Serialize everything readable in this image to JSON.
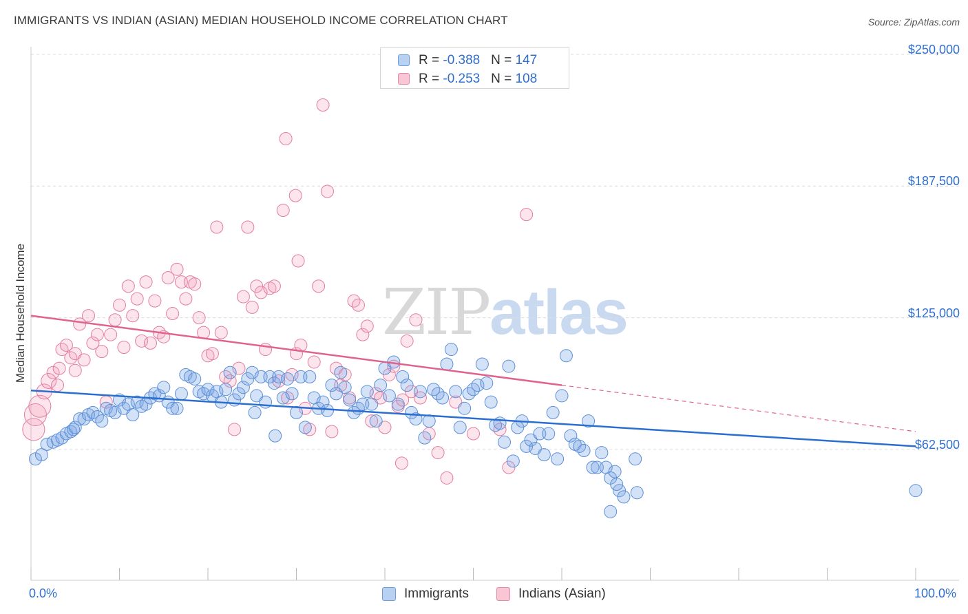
{
  "title": "IMMIGRANTS VS INDIAN (ASIAN) MEDIAN HOUSEHOLD INCOME CORRELATION CHART",
  "source": "Source: ZipAtlas.com",
  "watermark": {
    "zip": "ZIP",
    "atlas": "atlas"
  },
  "legend_top": [
    {
      "r_label": "R = ",
      "r_value": "-0.388",
      "n_label": "N = ",
      "n_value": "147",
      "fill": "#b8d1f3",
      "stroke": "#6c9fe0"
    },
    {
      "r_label": "R = ",
      "r_value": "-0.253",
      "n_label": "N = ",
      "n_value": "108",
      "fill": "#f8c6d4",
      "stroke": "#e888a6"
    }
  ],
  "legend_bottom": [
    {
      "label": "Immigrants",
      "fill": "#b8d1f3",
      "stroke": "#6c9fe0"
    },
    {
      "label": "Indians (Asian)",
      "fill": "#f8c6d4",
      "stroke": "#e888a6"
    }
  ],
  "colors": {
    "immigrants_fill": "rgba(120,165,230,0.32)",
    "immigrants_stroke": "#5b8fd6",
    "immigrants_line": "#2a6fd0",
    "indians_fill": "rgba(244,160,185,0.28)",
    "indians_stroke": "#e27c9e",
    "indians_line": "#e0638f",
    "grid": "#dcdcdc",
    "axis_text": "#2f6fcf"
  },
  "chart_data": {
    "type": "scatter",
    "title": "IMMIGRANTS VS INDIAN (ASIAN) MEDIAN HOUSEHOLD INCOME CORRELATION CHART",
    "xlabel": "",
    "ylabel": "Median Household Income",
    "xlim": [
      0,
      100
    ],
    "ylim": [
      12000,
      265000
    ],
    "x_tick_labels": [
      "0.0%",
      "100.0%"
    ],
    "y_ticks": [
      62500,
      125000,
      187500,
      250000
    ],
    "y_tick_labels": [
      "$62,500",
      "$125,000",
      "$187,500",
      "$250,000"
    ],
    "grid": "horizontal dashed",
    "legend": "top-center",
    "series": [
      {
        "name": "Immigrants",
        "R": -0.388,
        "N": 147,
        "trend": {
          "x": [
            0,
            100
          ],
          "y": [
            90500,
            64000
          ]
        },
        "points": [
          [
            0.5,
            58000
          ],
          [
            1.2,
            60000
          ],
          [
            1.8,
            65000
          ],
          [
            2.5,
            66000
          ],
          [
            3,
            67000
          ],
          [
            3.5,
            68000
          ],
          [
            4,
            70000
          ],
          [
            4.5,
            71000
          ],
          [
            4.8,
            72000
          ],
          [
            5,
            73000
          ],
          [
            5.5,
            77000
          ],
          [
            6,
            77000
          ],
          [
            6.5,
            79000
          ],
          [
            7,
            80000
          ],
          [
            7.5,
            78000
          ],
          [
            8,
            76000
          ],
          [
            8.5,
            82000
          ],
          [
            9,
            81000
          ],
          [
            9.5,
            80000
          ],
          [
            10,
            86000
          ],
          [
            10.5,
            82000
          ],
          [
            11,
            84000
          ],
          [
            11.5,
            79000
          ],
          [
            12,
            85000
          ],
          [
            12.5,
            83000
          ],
          [
            13,
            84000
          ],
          [
            13.5,
            87000
          ],
          [
            14,
            89000
          ],
          [
            14.5,
            88000
          ],
          [
            15,
            92000
          ],
          [
            15.5,
            85000
          ],
          [
            16,
            82000
          ],
          [
            16.5,
            82000
          ],
          [
            17,
            89000
          ],
          [
            17.5,
            98000
          ],
          [
            18,
            97000
          ],
          [
            18.5,
            96000
          ],
          [
            19,
            90000
          ],
          [
            19.5,
            89000
          ],
          [
            20,
            91000
          ],
          [
            20.5,
            88000
          ],
          [
            21,
            90000
          ],
          [
            21.5,
            85000
          ],
          [
            22,
            91000
          ],
          [
            22.5,
            99000
          ],
          [
            23,
            86000
          ],
          [
            23.5,
            89000
          ],
          [
            24,
            92000
          ],
          [
            24.5,
            96000
          ],
          [
            25,
            99000
          ],
          [
            25.5,
            88000
          ],
          [
            26,
            97000
          ],
          [
            26.5,
            85000
          ],
          [
            27,
            97000
          ],
          [
            27.5,
            94000
          ],
          [
            28,
            97000
          ],
          [
            28.5,
            87000
          ],
          [
            29,
            96000
          ],
          [
            29.5,
            89000
          ],
          [
            30,
            80000
          ],
          [
            30.5,
            97000
          ],
          [
            31,
            73000
          ],
          [
            31.5,
            97000
          ],
          [
            32,
            87000
          ],
          [
            32.5,
            82000
          ],
          [
            33,
            85000
          ],
          [
            33.5,
            81000
          ],
          [
            34,
            93000
          ],
          [
            34.5,
            89000
          ],
          [
            35,
            99000
          ],
          [
            35.5,
            92000
          ],
          [
            36,
            86000
          ],
          [
            36.5,
            80000
          ],
          [
            37,
            82000
          ],
          [
            37.5,
            84000
          ],
          [
            38,
            90000
          ],
          [
            38.5,
            84000
          ],
          [
            39,
            76000
          ],
          [
            39.5,
            93000
          ],
          [
            40,
            101000
          ],
          [
            40.5,
            88000
          ],
          [
            41,
            104000
          ],
          [
            41.5,
            84000
          ],
          [
            42,
            97000
          ],
          [
            42.5,
            93000
          ],
          [
            43,
            80000
          ],
          [
            43.5,
            77000
          ],
          [
            44,
            90000
          ],
          [
            44.5,
            68000
          ],
          [
            45,
            76000
          ],
          [
            45.5,
            91000
          ],
          [
            46,
            89000
          ],
          [
            46.5,
            87000
          ],
          [
            47,
            103000
          ],
          [
            47.5,
            110000
          ],
          [
            48,
            90000
          ],
          [
            48.5,
            73000
          ],
          [
            49,
            82000
          ],
          [
            49.5,
            89000
          ],
          [
            50,
            91000
          ],
          [
            50.5,
            93000
          ],
          [
            51,
            103000
          ],
          [
            51.5,
            94000
          ],
          [
            52,
            85000
          ],
          [
            52.5,
            74000
          ],
          [
            53,
            75000
          ],
          [
            53.5,
            66000
          ],
          [
            54,
            102000
          ],
          [
            54.5,
            57000
          ],
          [
            55,
            73000
          ],
          [
            55.5,
            76000
          ],
          [
            56,
            64000
          ],
          [
            56.5,
            67000
          ],
          [
            57,
            63000
          ],
          [
            57.5,
            70000
          ],
          [
            58,
            60000
          ],
          [
            58.5,
            70000
          ],
          [
            59,
            80000
          ],
          [
            59.5,
            58000
          ],
          [
            60,
            88000
          ],
          [
            60.5,
            107000
          ],
          [
            61,
            69000
          ],
          [
            61.5,
            65000
          ],
          [
            62,
            64000
          ],
          [
            62.5,
            62000
          ],
          [
            63,
            76000
          ],
          [
            63.5,
            54000
          ],
          [
            64,
            54000
          ],
          [
            64.5,
            61000
          ],
          [
            65,
            54000
          ],
          [
            65.5,
            49000
          ],
          [
            66,
            52000
          ],
          [
            66.5,
            43000
          ],
          [
            67,
            40000
          ],
          [
            68.5,
            42000
          ],
          [
            65.5,
            33000
          ],
          [
            100,
            43000
          ],
          [
            66.2,
            46000
          ],
          [
            68.3,
            58000
          ],
          [
            25.3,
            80000
          ],
          [
            27.6,
            69000
          ]
        ]
      },
      {
        "name": "Indians (Asian)",
        "R": -0.253,
        "N": 108,
        "trend": {
          "x": [
            0,
            60
          ],
          "y": [
            126000,
            93000
          ]
        },
        "trend_dashed": {
          "x": [
            60,
            100
          ],
          "y": [
            93000,
            71000
          ]
        },
        "points": [
          [
            0.3,
            72000
          ],
          [
            0.5,
            79000
          ],
          [
            1,
            83000
          ],
          [
            1.5,
            90000
          ],
          [
            2,
            95000
          ],
          [
            2.5,
            99000
          ],
          [
            3,
            93000
          ],
          [
            3.2,
            101000
          ],
          [
            3.5,
            110000
          ],
          [
            4,
            112000
          ],
          [
            4.5,
            106000
          ],
          [
            5,
            108000
          ],
          [
            5.5,
            122000
          ],
          [
            6,
            105000
          ],
          [
            6.5,
            126000
          ],
          [
            7,
            113000
          ],
          [
            7.5,
            117000
          ],
          [
            8,
            109000
          ],
          [
            8.5,
            85000
          ],
          [
            9,
            117000
          ],
          [
            9.5,
            124000
          ],
          [
            10,
            131000
          ],
          [
            10.5,
            111000
          ],
          [
            11,
            140000
          ],
          [
            11.5,
            126000
          ],
          [
            12,
            134000
          ],
          [
            12.5,
            114000
          ],
          [
            13,
            142000
          ],
          [
            13.5,
            113000
          ],
          [
            14,
            133000
          ],
          [
            14.5,
            118000
          ],
          [
            15,
            116000
          ],
          [
            15.5,
            144000
          ],
          [
            16,
            127000
          ],
          [
            16.5,
            148000
          ],
          [
            17,
            142000
          ],
          [
            17.5,
            134000
          ],
          [
            18,
            142000
          ],
          [
            18.5,
            141000
          ],
          [
            19,
            125000
          ],
          [
            19.5,
            118000
          ],
          [
            20,
            107000
          ],
          [
            20.5,
            108000
          ],
          [
            21,
            168000
          ],
          [
            21.5,
            118000
          ],
          [
            22,
            97000
          ],
          [
            22.5,
            95000
          ],
          [
            23,
            72000
          ],
          [
            23.5,
            101000
          ],
          [
            24,
            135000
          ],
          [
            24.5,
            168000
          ],
          [
            25,
            130000
          ],
          [
            25.5,
            140000
          ],
          [
            26,
            137000
          ],
          [
            26.5,
            110000
          ],
          [
            27,
            139000
          ],
          [
            27.5,
            140000
          ],
          [
            28,
            95000
          ],
          [
            28.5,
            176000
          ],
          [
            29,
            87000
          ],
          [
            29.5,
            98000
          ],
          [
            30,
            108000
          ],
          [
            30.5,
            112000
          ],
          [
            31,
            82000
          ],
          [
            31.5,
            72000
          ],
          [
            32,
            104000
          ],
          [
            32.5,
            140000
          ],
          [
            33,
            226000
          ],
          [
            33.5,
            185000
          ],
          [
            34,
            71000
          ],
          [
            34.5,
            101000
          ],
          [
            35,
            93000
          ],
          [
            35.5,
            98000
          ],
          [
            36,
            87000
          ],
          [
            36.5,
            133000
          ],
          [
            37,
            131000
          ],
          [
            37.5,
            117000
          ],
          [
            38,
            121000
          ],
          [
            38.5,
            76000
          ],
          [
            39,
            89000
          ],
          [
            39.5,
            87000
          ],
          [
            40,
            73000
          ],
          [
            40.5,
            98000
          ],
          [
            41,
            102000
          ],
          [
            41.5,
            83000
          ],
          [
            42,
            86000
          ],
          [
            42.5,
            114000
          ],
          [
            43,
            90000
          ],
          [
            44,
            87000
          ],
          [
            45,
            70000
          ],
          [
            46,
            61000
          ],
          [
            47,
            49000
          ],
          [
            48,
            85000
          ],
          [
            50,
            70000
          ],
          [
            53,
            72000
          ],
          [
            54,
            54000
          ],
          [
            56,
            174000
          ],
          [
            28.8,
            210000
          ],
          [
            29.9,
            183000
          ],
          [
            30.2,
            152000
          ],
          [
            41.9,
            56000
          ],
          [
            43.5,
            124000
          ],
          [
            5,
            100000
          ]
        ]
      }
    ]
  }
}
